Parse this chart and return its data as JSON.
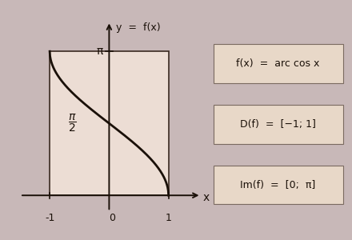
{
  "bg_color": "#c8b8b8",
  "plot_bg_color": "#ecddd4",
  "box_color": "#e8d8c8",
  "box_edge_color": "#7a6a60",
  "curve_color": "#1a1008",
  "axis_color": "#1a1008",
  "rect_edge_color": "#3a2a20",
  "title_label": "y  =  f(x)",
  "xlabel": "x",
  "pi_label": "π",
  "neg1_label": "-1",
  "zero_label": "0",
  "one_label": "1",
  "box1_text": "f(x)  =  arc cos x",
  "box2_text": "D(f)  =  [−1; 1]",
  "box3_text": "Im(f)  =  [0;  π]",
  "figsize": [
    4.4,
    3.0
  ],
  "dpi": 100
}
